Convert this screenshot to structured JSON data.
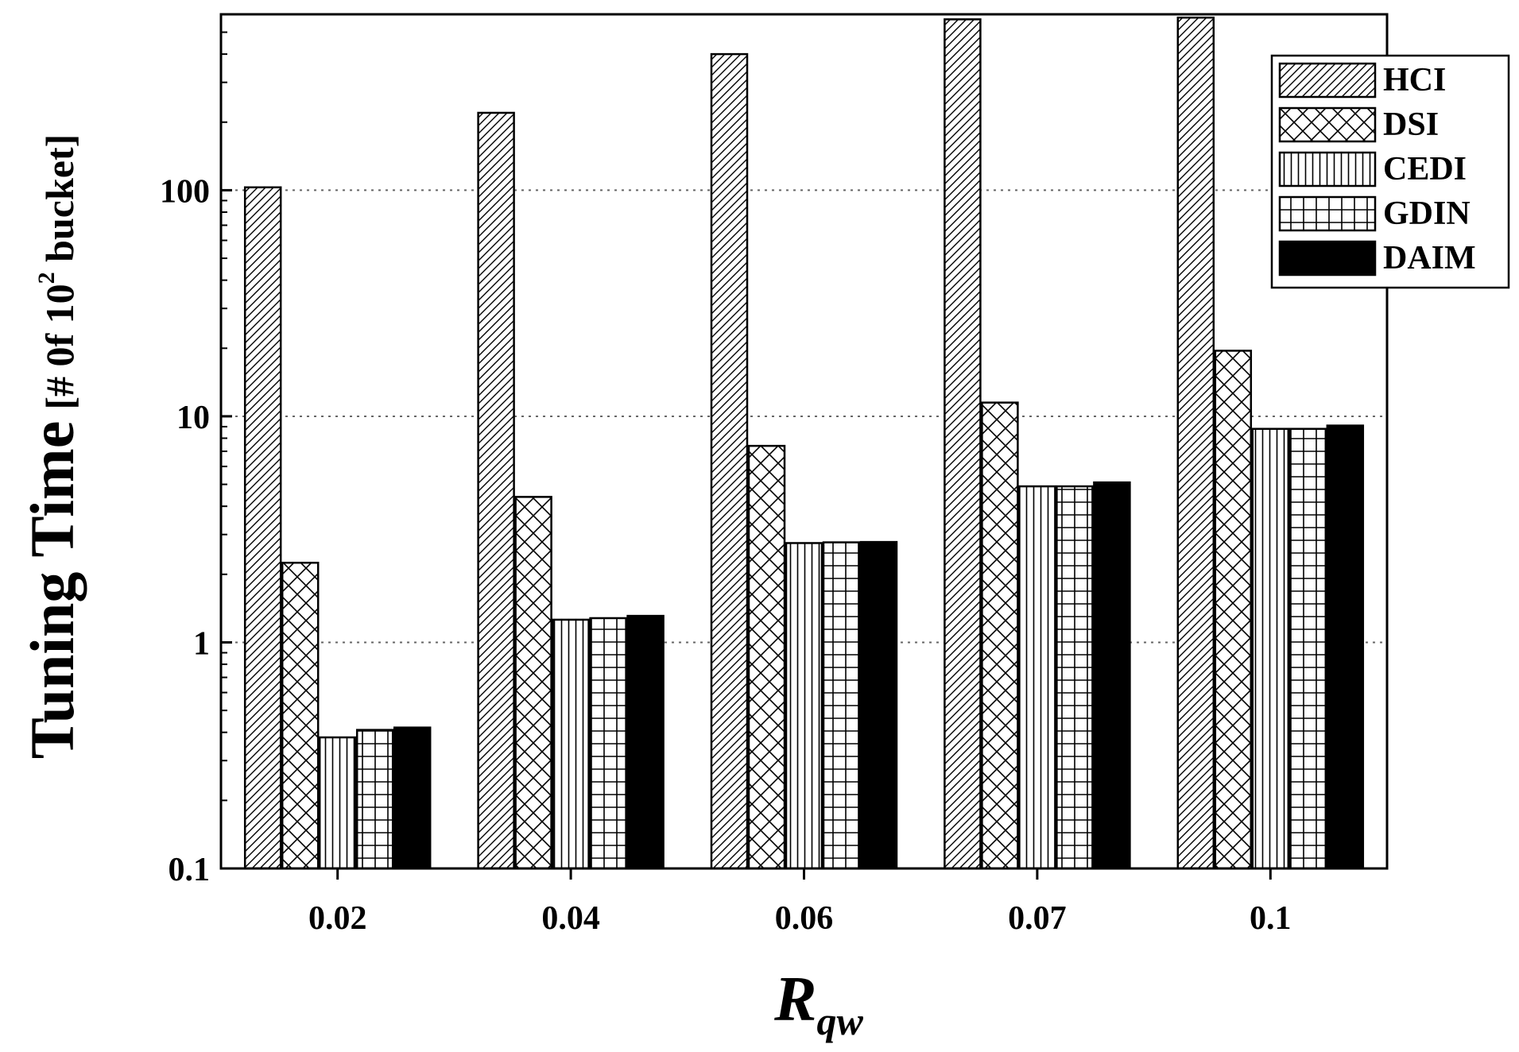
{
  "chart_data": {
    "type": "bar",
    "scale": "log",
    "title": "",
    "ylabel": {
      "main": "Tuning Time",
      "unit_prefix": "[# 0f 10",
      "unit_sup": "2",
      "unit_suffix": " bucket]"
    },
    "xlabel": {
      "main": "R",
      "sub": "qw"
    },
    "ylim": [
      0.1,
      600
    ],
    "yticks": [
      {
        "value": 0.1,
        "label": "0.1"
      },
      {
        "value": 1,
        "label": "1"
      },
      {
        "value": 10,
        "label": "10"
      },
      {
        "value": 100,
        "label": "100"
      }
    ],
    "grid": "horizontal dotted at 1, 10, 100",
    "categories": [
      "0.02",
      "0.04",
      "0.06",
      "0.07",
      "0.1"
    ],
    "series": [
      {
        "name": "HCI",
        "pattern": "diagonal",
        "values": [
          103,
          220,
          400,
          570,
          580
        ]
      },
      {
        "name": "DSI",
        "pattern": "crosshatch",
        "values": [
          2.25,
          4.4,
          7.4,
          11.5,
          19.5
        ]
      },
      {
        "name": "CEDI",
        "pattern": "vertical",
        "values": [
          0.38,
          1.26,
          2.75,
          4.9,
          8.8
        ]
      },
      {
        "name": "GDIN",
        "pattern": "grid",
        "values": [
          0.41,
          1.28,
          2.77,
          4.9,
          8.8
        ]
      },
      {
        "name": "DAIM",
        "pattern": "solid",
        "values": [
          0.42,
          1.31,
          2.78,
          5.1,
          9.1
        ]
      }
    ],
    "legend": "top-right inside plot",
    "colors": {
      "ink": "#000000",
      "grid": "#666666",
      "background": "#ffffff"
    }
  }
}
